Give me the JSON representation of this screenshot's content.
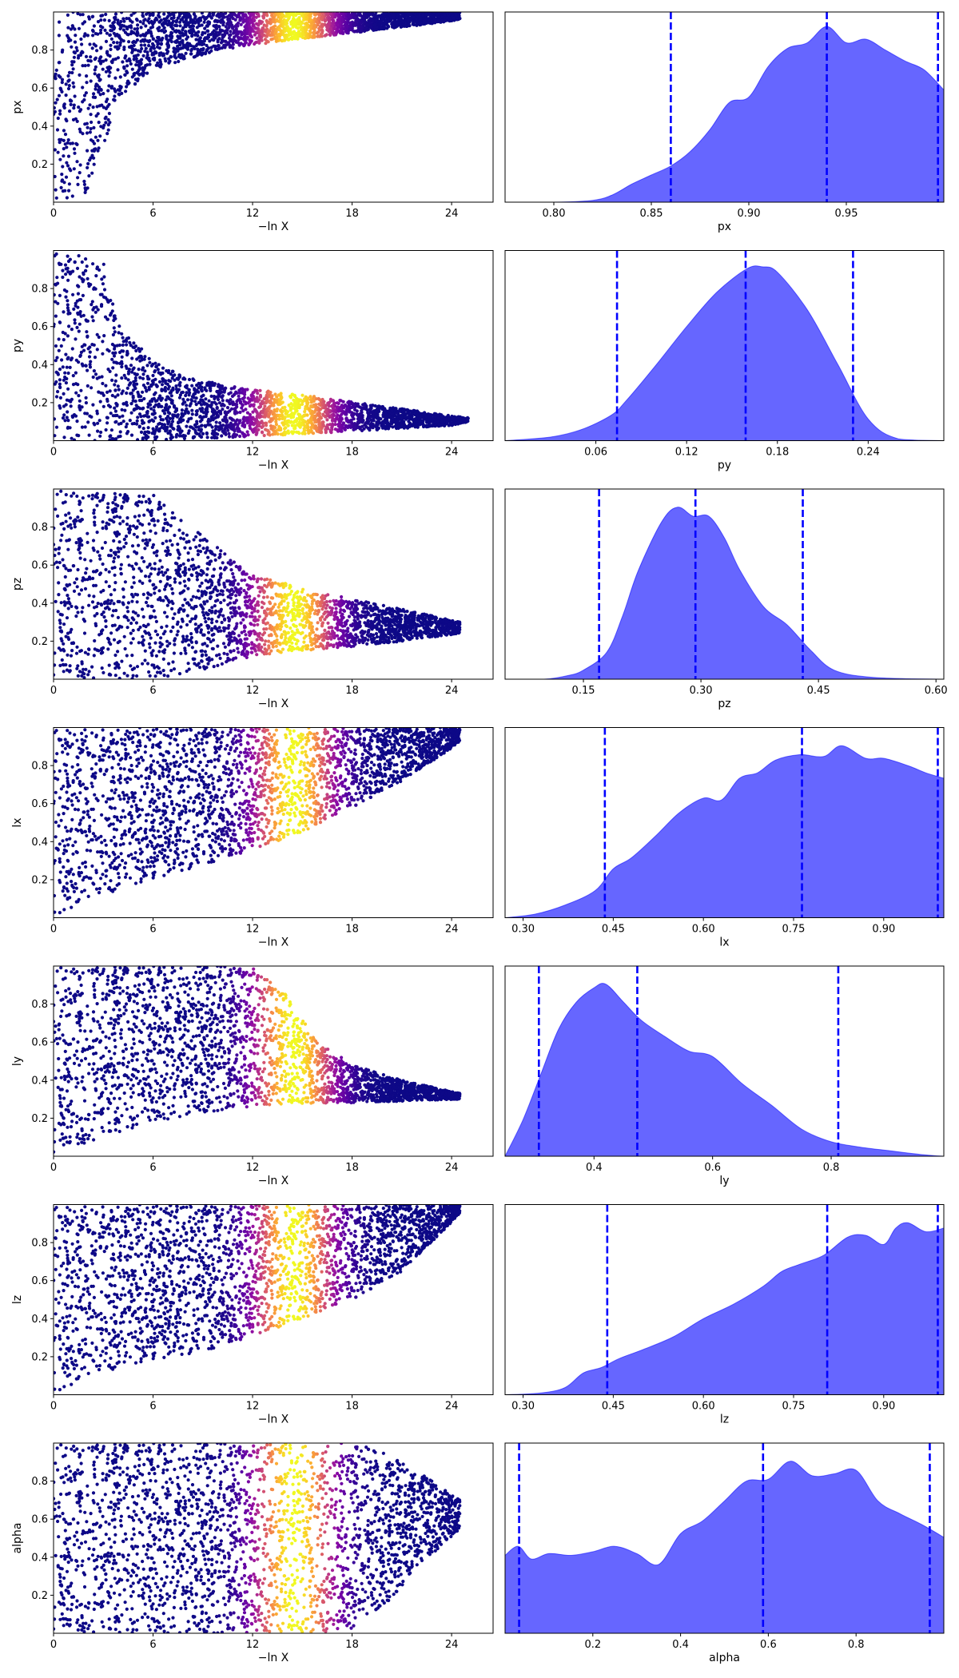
{
  "chart_data": [
    {
      "panel": "trace",
      "type": "scatter",
      "param": "px",
      "xlabel": "−ln X",
      "ylabel": "px",
      "xlim": [
        0,
        26.5
      ],
      "ylim": [
        0,
        1
      ],
      "xticks": [
        0,
        6,
        12,
        18,
        24
      ],
      "xtick_labels": [
        "0",
        "6",
        "12",
        "18",
        "24"
      ],
      "yticks": [
        0.2,
        0.4,
        0.6,
        0.8
      ],
      "ytick_labels": [
        "0.2",
        "0.4",
        "0.6",
        "0.8"
      ],
      "colormap": "plasma",
      "weight_peak_lnx": 14.5,
      "envelope": {
        "x": [
          0,
          2,
          4,
          6,
          10,
          14,
          18,
          22,
          24.5
        ],
        "lower": [
          0,
          0.05,
          0.55,
          0.7,
          0.8,
          0.85,
          0.89,
          0.93,
          0.96
        ],
        "upper": [
          1,
          1,
          1,
          1,
          1,
          1,
          1,
          1,
          1
        ]
      }
    },
    {
      "panel": "trace",
      "type": "scatter",
      "param": "py",
      "xlabel": "−ln X",
      "ylabel": "py",
      "xlim": [
        0,
        26.5
      ],
      "ylim": [
        0,
        1
      ],
      "xticks": [
        0,
        6,
        12,
        18,
        24
      ],
      "xtick_labels": [
        "0",
        "6",
        "12",
        "18",
        "24"
      ],
      "yticks": [
        0.2,
        0.4,
        0.6,
        0.8
      ],
      "ytick_labels": [
        "0.2",
        "0.4",
        "0.6",
        "0.8"
      ],
      "colormap": "plasma",
      "weight_peak_lnx": 14.5,
      "envelope": {
        "x": [
          0,
          3,
          4,
          6,
          8,
          12,
          16,
          20,
          24,
          25
        ],
        "lower": [
          0,
          0,
          0,
          0,
          0.01,
          0.02,
          0.04,
          0.06,
          0.08,
          0.1
        ],
        "upper": [
          1,
          0.95,
          0.6,
          0.42,
          0.33,
          0.27,
          0.23,
          0.18,
          0.13,
          0.12
        ]
      }
    },
    {
      "panel": "trace",
      "type": "scatter",
      "param": "pz",
      "xlabel": "−ln X",
      "ylabel": "pz",
      "xlim": [
        0,
        26.5
      ],
      "ylim": [
        0,
        1
      ],
      "xticks": [
        0,
        6,
        12,
        18,
        24
      ],
      "xtick_labels": [
        "0",
        "6",
        "12",
        "18",
        "24"
      ],
      "yticks": [
        0.2,
        0.4,
        0.6,
        0.8
      ],
      "ytick_labels": [
        "0.2",
        "0.4",
        "0.6",
        "0.8"
      ],
      "colormap": "plasma",
      "weight_peak_lnx": 14.5,
      "envelope": {
        "x": [
          0,
          6,
          9,
          12,
          15,
          18,
          21,
          24.5
        ],
        "lower": [
          0,
          0,
          0.05,
          0.12,
          0.15,
          0.17,
          0.2,
          0.24
        ],
        "upper": [
          1,
          0.97,
          0.75,
          0.55,
          0.48,
          0.42,
          0.37,
          0.3
        ]
      }
    },
    {
      "panel": "trace",
      "type": "scatter",
      "param": "lx",
      "xlabel": "−ln X",
      "ylabel": "lx",
      "xlim": [
        0,
        26.5
      ],
      "ylim": [
        0,
        1
      ],
      "xticks": [
        0,
        6,
        12,
        18,
        24
      ],
      "xtick_labels": [
        "0",
        "6",
        "12",
        "18",
        "24"
      ],
      "yticks": [
        0.2,
        0.4,
        0.6,
        0.8
      ],
      "ytick_labels": [
        "0.2",
        "0.4",
        "0.6",
        "0.8"
      ],
      "colormap": "plasma",
      "weight_peak_lnx": 14.5,
      "envelope": {
        "x": [
          0,
          3,
          6,
          9,
          12,
          15,
          18,
          21,
          24.5
        ],
        "lower": [
          0,
          0.12,
          0.2,
          0.28,
          0.35,
          0.45,
          0.58,
          0.72,
          0.92
        ],
        "upper": [
          1,
          1,
          1,
          1,
          1,
          1,
          1,
          1,
          1
        ]
      }
    },
    {
      "panel": "trace",
      "type": "scatter",
      "param": "ly",
      "xlabel": "−ln X",
      "ylabel": "ly",
      "xlim": [
        0,
        26.5
      ],
      "ylim": [
        0,
        1
      ],
      "xticks": [
        0,
        6,
        12,
        18,
        24
      ],
      "xtick_labels": [
        "0",
        "6",
        "12",
        "18",
        "24"
      ],
      "yticks": [
        0.2,
        0.4,
        0.6,
        0.8
      ],
      "ytick_labels": [
        "0.2",
        "0.4",
        "0.6",
        "0.8"
      ],
      "colormap": "plasma",
      "weight_peak_lnx": 14.5,
      "envelope": {
        "x": [
          0,
          3,
          6,
          9,
          12,
          14,
          16,
          18,
          21,
          24.5
        ],
        "lower": [
          0,
          0.1,
          0.18,
          0.23,
          0.26,
          0.27,
          0.28,
          0.28,
          0.29,
          0.3
        ],
        "upper": [
          1,
          1,
          1,
          1,
          1,
          0.85,
          0.6,
          0.48,
          0.4,
          0.33
        ]
      }
    },
    {
      "panel": "trace",
      "type": "scatter",
      "param": "lz",
      "xlabel": "−ln X",
      "ylabel": "lz",
      "xlim": [
        0,
        26.5
      ],
      "ylim": [
        0,
        1
      ],
      "xticks": [
        0,
        6,
        12,
        18,
        24
      ],
      "xtick_labels": [
        "0",
        "6",
        "12",
        "18",
        "24"
      ],
      "yticks": [
        0.2,
        0.4,
        0.6,
        0.8
      ],
      "ytick_labels": [
        "0.2",
        "0.4",
        "0.6",
        "0.8"
      ],
      "colormap": "plasma",
      "weight_peak_lnx": 14.5,
      "envelope": {
        "x": [
          0,
          3,
          6,
          9,
          12,
          15,
          18,
          21,
          24.5
        ],
        "lower": [
          0,
          0.12,
          0.18,
          0.23,
          0.3,
          0.4,
          0.5,
          0.65,
          0.95
        ],
        "upper": [
          1,
          1,
          1,
          1,
          1,
          1,
          1,
          1,
          1
        ]
      }
    },
    {
      "panel": "trace",
      "type": "scatter",
      "param": "alpha",
      "xlabel": "−ln X",
      "ylabel": "alpha",
      "xlim": [
        0,
        26.5
      ],
      "ylim": [
        0,
        1
      ],
      "xticks": [
        0,
        6,
        12,
        18,
        24
      ],
      "xtick_labels": [
        "0",
        "6",
        "12",
        "18",
        "24"
      ],
      "yticks": [
        0.2,
        0.4,
        0.6,
        0.8
      ],
      "ytick_labels": [
        "0.2",
        "0.4",
        "0.6",
        "0.8"
      ],
      "colormap": "plasma",
      "weight_peak_lnx": 14.5,
      "envelope": {
        "x": [
          0,
          12,
          15,
          18,
          20,
          22,
          24.5
        ],
        "lower": [
          0,
          0,
          0,
          0.02,
          0.15,
          0.35,
          0.55
        ],
        "upper": [
          1,
          1,
          1,
          1,
          0.95,
          0.85,
          0.7
        ]
      }
    },
    {
      "panel": "posterior",
      "type": "area",
      "xlabel": "px",
      "xlim": [
        0.775,
        1.0
      ],
      "ylim": [
        0,
        1.05
      ],
      "xticks": [
        0.8,
        0.85,
        0.9,
        0.95
      ],
      "xtick_labels": [
        "0.80",
        "0.85",
        "0.90",
        "0.95"
      ],
      "x": [
        0.775,
        0.8,
        0.82,
        0.83,
        0.84,
        0.85,
        0.86,
        0.87,
        0.88,
        0.89,
        0.9,
        0.91,
        0.92,
        0.93,
        0.94,
        0.95,
        0.96,
        0.97,
        0.98,
        0.99,
        1.0
      ],
      "density": [
        0.0,
        0.0,
        0.01,
        0.04,
        0.1,
        0.15,
        0.2,
        0.28,
        0.4,
        0.55,
        0.58,
        0.75,
        0.85,
        0.88,
        0.97,
        0.88,
        0.9,
        0.84,
        0.78,
        0.73,
        0.62
      ],
      "quantiles": [
        0.86,
        0.94,
        0.997
      ],
      "fill_color": "#6666ff",
      "line_color": "#0000ff"
    },
    {
      "panel": "posterior",
      "type": "area",
      "xlabel": "py",
      "xlim": [
        0.0,
        0.29
      ],
      "ylim": [
        0,
        1.05
      ],
      "xticks": [
        0.06,
        0.12,
        0.18,
        0.24
      ],
      "xtick_labels": [
        "0.06",
        "0.12",
        "0.18",
        "0.24"
      ],
      "x": [
        0.0,
        0.03,
        0.05,
        0.07,
        0.08,
        0.1,
        0.12,
        0.14,
        0.16,
        0.17,
        0.18,
        0.2,
        0.22,
        0.24,
        0.26,
        0.29
      ],
      "density": [
        0.0,
        0.02,
        0.06,
        0.14,
        0.22,
        0.42,
        0.63,
        0.82,
        0.95,
        0.96,
        0.93,
        0.72,
        0.42,
        0.12,
        0.01,
        0.0
      ],
      "quantiles": [
        0.074,
        0.159,
        0.23
      ],
      "fill_color": "#6666ff",
      "line_color": "#0000ff"
    },
    {
      "panel": "posterior",
      "type": "area",
      "xlabel": "pz",
      "xlim": [
        0.05,
        0.61
      ],
      "ylim": [
        0,
        1.05
      ],
      "xticks": [
        0.15,
        0.3,
        0.45,
        0.6
      ],
      "xtick_labels": [
        "0.15",
        "0.30",
        "0.45",
        "0.60"
      ],
      "x": [
        0.05,
        0.1,
        0.13,
        0.15,
        0.18,
        0.2,
        0.22,
        0.25,
        0.27,
        0.29,
        0.31,
        0.33,
        0.35,
        0.38,
        0.41,
        0.44,
        0.47,
        0.52,
        0.61
      ],
      "density": [
        0.0,
        0.0,
        0.02,
        0.05,
        0.15,
        0.35,
        0.6,
        0.87,
        0.95,
        0.9,
        0.9,
        0.78,
        0.6,
        0.4,
        0.3,
        0.16,
        0.05,
        0.01,
        0.0
      ],
      "quantiles": [
        0.17,
        0.293,
        0.43
      ],
      "fill_color": "#6666ff",
      "line_color": "#0000ff"
    },
    {
      "panel": "posterior",
      "type": "area",
      "xlabel": "lx",
      "xlim": [
        0.27,
        1.0
      ],
      "ylim": [
        0,
        1.05
      ],
      "xticks": [
        0.3,
        0.45,
        0.6,
        0.75,
        0.9
      ],
      "xtick_labels": [
        "0.30",
        "0.45",
        "0.60",
        "0.75",
        "0.90"
      ],
      "x": [
        0.27,
        0.32,
        0.37,
        0.42,
        0.45,
        0.48,
        0.52,
        0.56,
        0.6,
        0.63,
        0.66,
        0.69,
        0.72,
        0.76,
        0.8,
        0.83,
        0.87,
        0.9,
        0.94,
        0.97,
        1.0
      ],
      "density": [
        0.0,
        0.02,
        0.07,
        0.15,
        0.27,
        0.33,
        0.45,
        0.58,
        0.66,
        0.65,
        0.77,
        0.8,
        0.87,
        0.9,
        0.89,
        0.95,
        0.88,
        0.88,
        0.84,
        0.8,
        0.77
      ],
      "quantiles": [
        0.436,
        0.764,
        0.99
      ],
      "fill_color": "#6666ff",
      "line_color": "#0000ff"
    },
    {
      "panel": "posterior",
      "type": "area",
      "xlabel": "ly",
      "xlim": [
        0.25,
        0.99
      ],
      "ylim": [
        0,
        1.05
      ],
      "xticks": [
        0.4,
        0.6,
        0.8
      ],
      "xtick_labels": [
        "0.4",
        "0.6",
        "0.8"
      ],
      "x": [
        0.25,
        0.28,
        0.31,
        0.34,
        0.37,
        0.4,
        0.42,
        0.45,
        0.48,
        0.52,
        0.56,
        0.6,
        0.65,
        0.7,
        0.75,
        0.8,
        0.85,
        0.9,
        0.95,
        0.99
      ],
      "density": [
        0.0,
        0.2,
        0.45,
        0.7,
        0.85,
        0.93,
        0.95,
        0.85,
        0.75,
        0.66,
        0.58,
        0.55,
        0.4,
        0.28,
        0.15,
        0.08,
        0.05,
        0.03,
        0.01,
        0.0
      ],
      "quantiles": [
        0.307,
        0.473,
        0.812
      ],
      "fill_color": "#6666ff",
      "line_color": "#0000ff"
    },
    {
      "panel": "posterior",
      "type": "area",
      "xlabel": "lz",
      "xlim": [
        0.27,
        1.0
      ],
      "ylim": [
        0,
        1.05
      ],
      "xticks": [
        0.3,
        0.45,
        0.6,
        0.75,
        0.9
      ],
      "xtick_labels": [
        "0.30",
        "0.45",
        "0.60",
        "0.75",
        "0.90"
      ],
      "x": [
        0.27,
        0.33,
        0.37,
        0.4,
        0.43,
        0.46,
        0.5,
        0.55,
        0.6,
        0.65,
        0.7,
        0.73,
        0.76,
        0.8,
        0.84,
        0.87,
        0.9,
        0.92,
        0.94,
        0.97,
        1.0
      ],
      "density": [
        0.0,
        0.01,
        0.04,
        0.12,
        0.15,
        0.2,
        0.25,
        0.32,
        0.42,
        0.5,
        0.6,
        0.68,
        0.72,
        0.77,
        0.87,
        0.88,
        0.83,
        0.92,
        0.95,
        0.9,
        0.92
      ],
      "quantiles": [
        0.44,
        0.806,
        0.99
      ],
      "fill_color": "#6666ff",
      "line_color": "#0000ff"
    },
    {
      "panel": "posterior",
      "type": "area",
      "xlabel": "alpha",
      "xlim": [
        0.0,
        1.0
      ],
      "ylim": [
        0,
        1.05
      ],
      "xticks": [
        0.2,
        0.4,
        0.6,
        0.8
      ],
      "xtick_labels": [
        "0.2",
        "0.4",
        "0.6",
        "0.8"
      ],
      "x": [
        0.0,
        0.03,
        0.06,
        0.1,
        0.15,
        0.2,
        0.25,
        0.3,
        0.35,
        0.4,
        0.45,
        0.5,
        0.55,
        0.6,
        0.65,
        0.7,
        0.75,
        0.8,
        0.85,
        0.9,
        0.95,
        1.0
      ],
      "density": [
        0.43,
        0.48,
        0.41,
        0.44,
        0.43,
        0.45,
        0.48,
        0.44,
        0.38,
        0.55,
        0.62,
        0.73,
        0.84,
        0.85,
        0.95,
        0.87,
        0.88,
        0.9,
        0.73,
        0.66,
        0.6,
        0.53
      ],
      "quantiles": [
        0.032,
        0.588,
        0.968
      ],
      "fill_color": "#6666ff",
      "line_color": "#0000ff"
    }
  ]
}
